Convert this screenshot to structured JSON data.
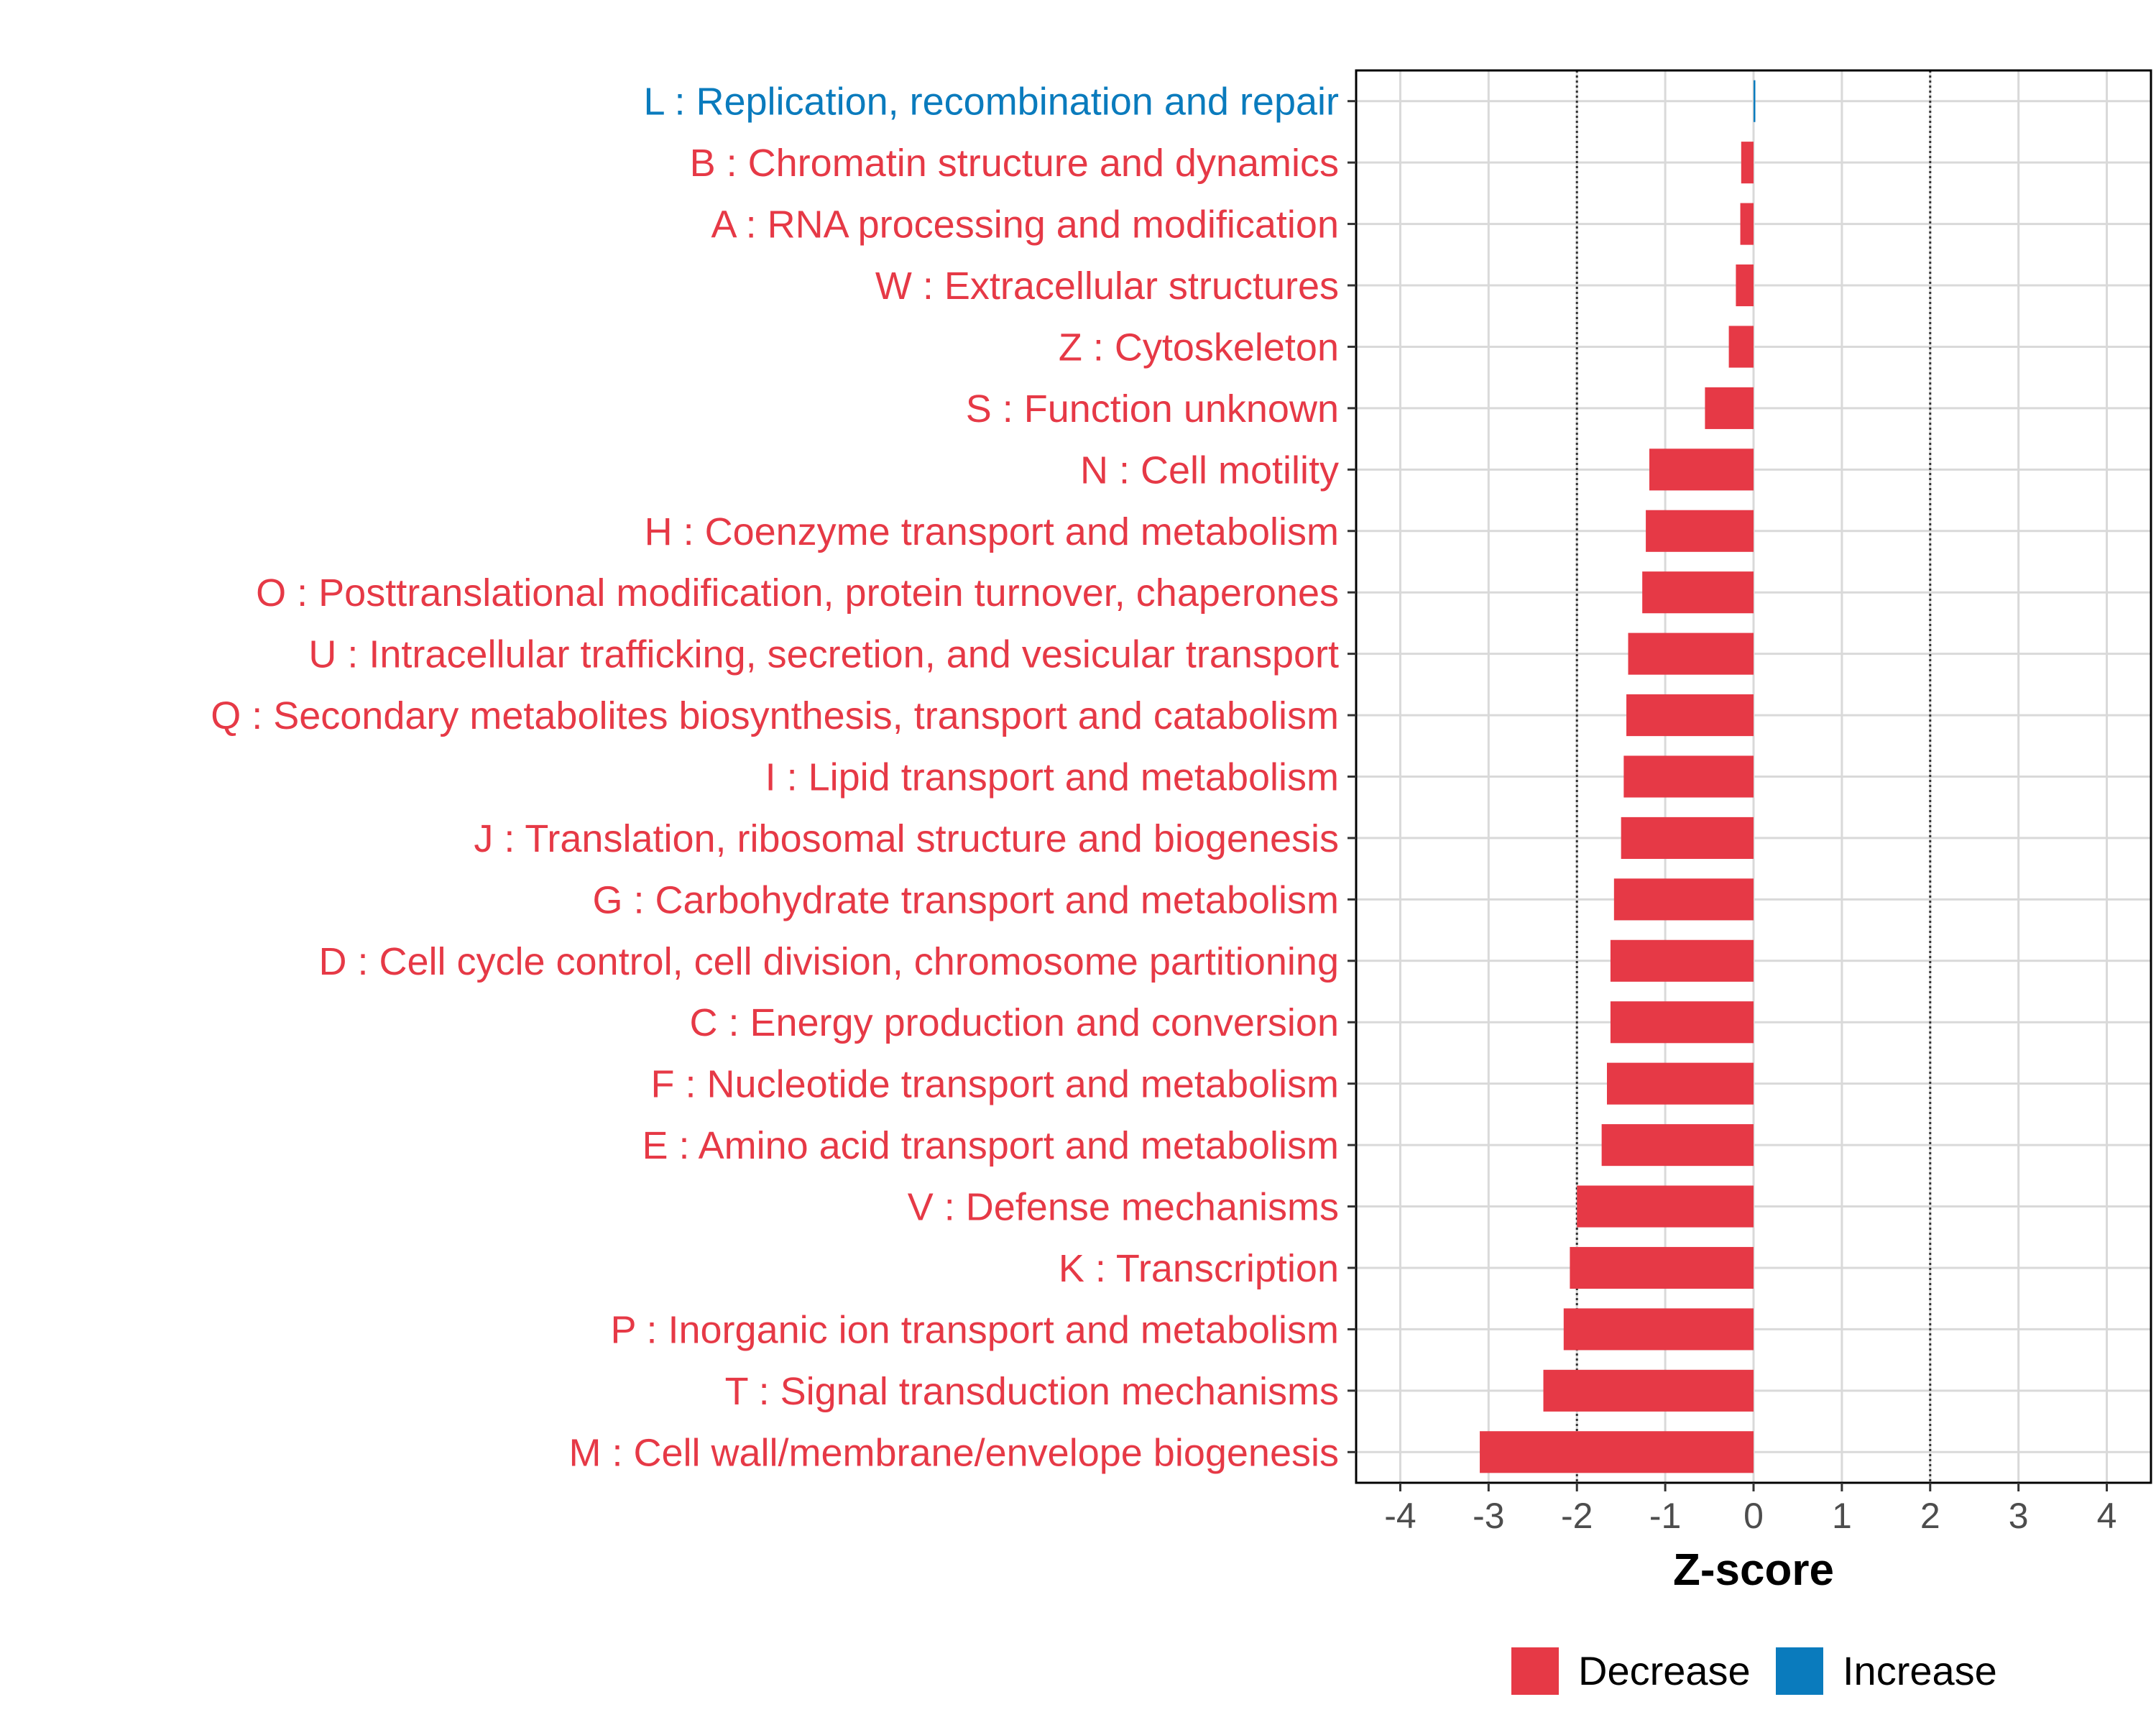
{
  "chart_data": {
    "type": "bar",
    "orientation": "horizontal",
    "title": "",
    "xlabel": "Z-score",
    "ylabel": "",
    "xlim": [
      -4.5,
      4.5
    ],
    "xticks": [
      -4,
      -3,
      -2,
      -1,
      0,
      1,
      2,
      3,
      4
    ],
    "reference_lines": [
      -2,
      2
    ],
    "grid": true,
    "legend_position": "bottom",
    "colors": {
      "Decrease": "#e63946",
      "Increase": "#0a7bbd"
    },
    "legend": [
      {
        "label": "Decrease",
        "color": "#e63946"
      },
      {
        "label": "Increase",
        "color": "#0a7bbd"
      }
    ],
    "categories": [
      "L : Replication, recombination and repair",
      "B : Chromatin structure and dynamics",
      "A : RNA processing and modification",
      "W : Extracellular structures",
      "Z : Cytoskeleton",
      "S : Function unknown",
      "N : Cell motility",
      "H : Coenzyme transport and metabolism",
      "O : Posttranslational modification, protein turnover, chaperones",
      "U : Intracellular trafficking, secretion, and vesicular transport",
      "Q : Secondary metabolites biosynthesis, transport and catabolism",
      "I : Lipid transport and metabolism",
      "J : Translation, ribosomal structure and biogenesis",
      "G : Carbohydrate transport and metabolism",
      "D : Cell cycle control, cell division, chromosome partitioning",
      "C : Energy production and conversion",
      "F : Nucleotide transport and metabolism",
      "E : Amino acid transport and metabolism",
      "V : Defense mechanisms",
      "K : Transcription",
      "P : Inorganic ion transport and metabolism",
      "T : Signal transduction mechanisms",
      "M : Cell wall/membrane/envelope biogenesis"
    ],
    "values": [
      0.02,
      -0.14,
      -0.15,
      -0.2,
      -0.28,
      -0.55,
      -1.18,
      -1.22,
      -1.26,
      -1.42,
      -1.44,
      -1.47,
      -1.5,
      -1.58,
      -1.62,
      -1.62,
      -1.66,
      -1.72,
      -2.0,
      -2.08,
      -2.15,
      -2.38,
      -3.1
    ],
    "direction": [
      "Increase",
      "Decrease",
      "Decrease",
      "Decrease",
      "Decrease",
      "Decrease",
      "Decrease",
      "Decrease",
      "Decrease",
      "Decrease",
      "Decrease",
      "Decrease",
      "Decrease",
      "Decrease",
      "Decrease",
      "Decrease",
      "Decrease",
      "Decrease",
      "Decrease",
      "Decrease",
      "Decrease",
      "Decrease",
      "Decrease"
    ]
  }
}
